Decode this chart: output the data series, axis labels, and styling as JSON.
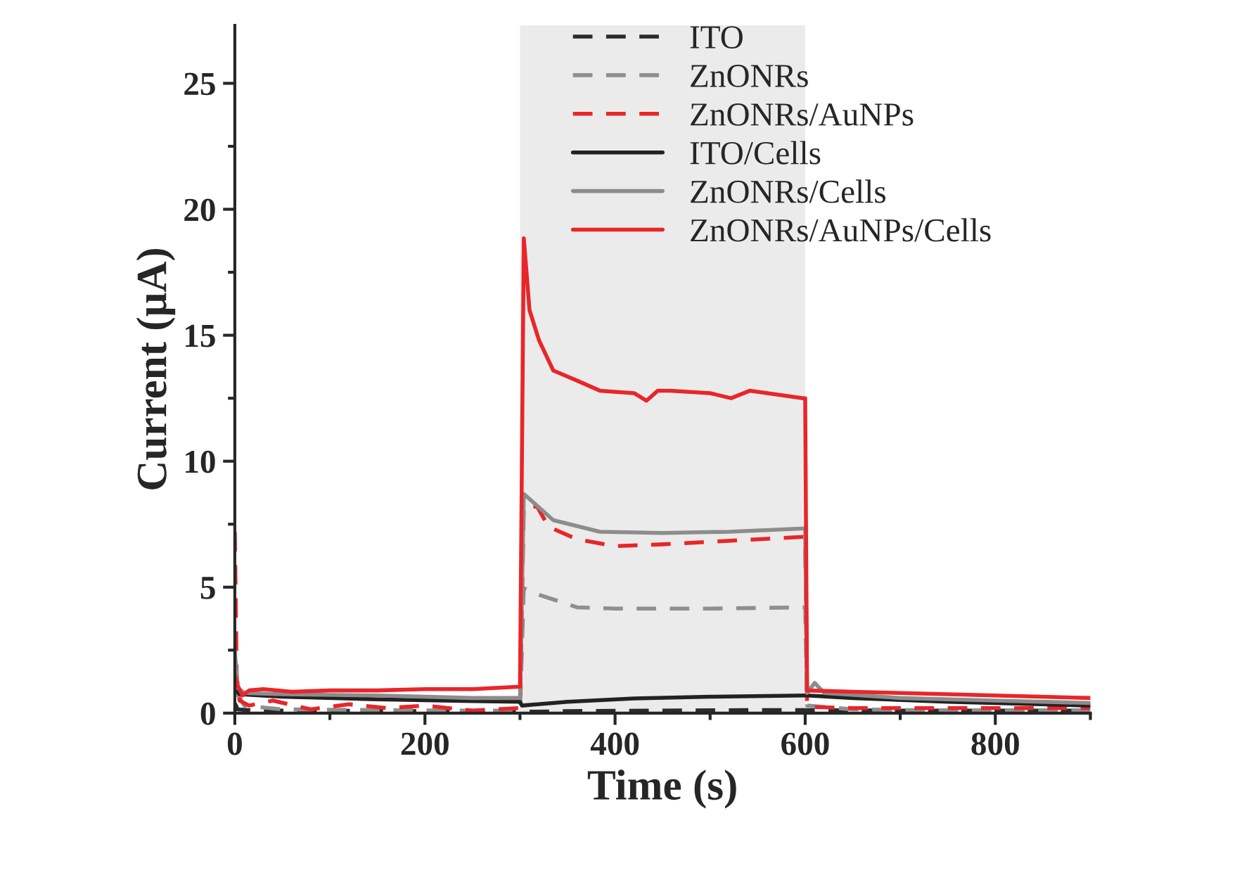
{
  "chart_data": {
    "type": "line",
    "xlabel": "Time (s)",
    "ylabel": "Current (μA)",
    "xlim": [
      0,
      900
    ],
    "ylim": [
      0,
      27.3
    ],
    "xticks": [
      0,
      200,
      400,
      600,
      800
    ],
    "yticks": [
      0,
      5,
      10,
      15,
      20,
      25
    ],
    "grid": false,
    "legend": "top",
    "marker": "none",
    "bands": [
      {
        "axis": "x",
        "from": 300,
        "to": 600,
        "color": "#ebebeb"
      }
    ],
    "series": [
      {
        "name": "ITO",
        "color": "#2b2b2b",
        "line_style": "dashed",
        "x": [
          0,
          3,
          20,
          100,
          200,
          300,
          350,
          450,
          550,
          600,
          700,
          800,
          900
        ],
        "values": [
          0.4,
          0.15,
          0.1,
          0.1,
          0.08,
          0.05,
          0.08,
          0.1,
          0.12,
          0.12,
          0.1,
          0.1,
          0.1
        ]
      },
      {
        "name": "ZnONRs",
        "color": "#8f8f8f",
        "line_style": "dashed",
        "x": [
          0,
          2,
          10,
          50,
          150,
          250,
          300,
          304,
          320,
          360,
          400,
          500,
          600,
          602,
          650,
          750,
          900
        ],
        "values": [
          2.2,
          0.8,
          0.3,
          0.15,
          0.12,
          0.1,
          0.1,
          4.96,
          4.7,
          4.2,
          4.15,
          4.15,
          4.2,
          0.3,
          0.15,
          0.1,
          0.1
        ]
      },
      {
        "name": "ZnONRs/AuNPs",
        "color": "#e8262a",
        "line_style": "dashed",
        "x": [
          0,
          2,
          5,
          15,
          40,
          80,
          120,
          160,
          200,
          250,
          300,
          304,
          318,
          330,
          360,
          400,
          450,
          500,
          550,
          600,
          602,
          650,
          750,
          900
        ],
        "values": [
          7.2,
          1.5,
          0.5,
          0.3,
          0.5,
          0.15,
          0.35,
          0.2,
          0.3,
          0.1,
          0.2,
          8.2,
          8.2,
          7.4,
          6.9,
          6.63,
          6.7,
          6.8,
          6.9,
          7.0,
          0.25,
          0.2,
          0.2,
          0.2
        ]
      },
      {
        "name": "ITO/Cells",
        "color": "#222222",
        "line_style": "solid",
        "x": [
          0,
          5,
          50,
          150,
          250,
          300,
          302,
          350,
          420,
          500,
          600,
          602,
          650,
          750,
          900
        ],
        "values": [
          1.0,
          0.75,
          0.65,
          0.55,
          0.48,
          0.45,
          0.3,
          0.45,
          0.58,
          0.65,
          0.7,
          0.7,
          0.6,
          0.45,
          0.3
        ]
      },
      {
        "name": "ZnONRs/Cells",
        "color": "#8c8c8c",
        "line_style": "solid",
        "x": [
          0,
          3,
          10,
          50,
          150,
          250,
          300,
          304,
          335,
          384,
          450,
          520,
          600,
          602,
          610,
          620,
          700,
          800,
          900
        ],
        "values": [
          2.5,
          1.0,
          0.8,
          0.75,
          0.7,
          0.6,
          0.6,
          8.7,
          7.66,
          7.2,
          7.15,
          7.2,
          7.33,
          0.8,
          1.2,
          0.8,
          0.6,
          0.5,
          0.4
        ]
      },
      {
        "name": "ZnONRs/AuNPs/Cells",
        "color": "#e8262a",
        "line_style": "solid",
        "x": [
          0,
          3,
          8,
          15,
          30,
          60,
          100,
          150,
          200,
          250,
          300,
          304,
          310,
          320,
          335,
          360,
          384,
          420,
          433,
          445,
          458,
          500,
          522,
          542,
          598,
          600,
          602,
          650,
          750,
          900
        ],
        "values": [
          1.5,
          1.1,
          0.7,
          0.9,
          0.95,
          0.85,
          0.9,
          0.9,
          0.95,
          0.95,
          1.05,
          18.85,
          16.0,
          14.8,
          13.6,
          13.2,
          12.8,
          12.7,
          12.4,
          12.8,
          12.8,
          12.7,
          12.5,
          12.8,
          12.5,
          12.5,
          0.9,
          0.85,
          0.75,
          0.6
        ]
      }
    ]
  }
}
